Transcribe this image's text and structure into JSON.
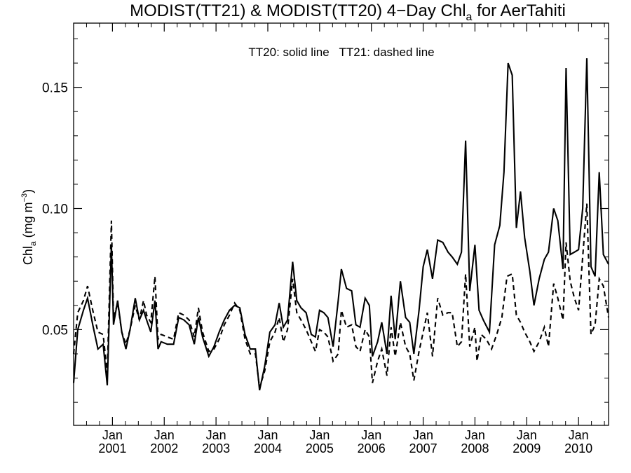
{
  "chart_data": {
    "type": "line",
    "title_main": "MODIST(TT21) & MODIST(TT20) 4−Day Chl",
    "title_sub": "a",
    "title_tail": " for AerTahiti",
    "ylabel_main": "Chl",
    "ylabel_sub": "a",
    "ylabel_unit": " (mg m",
    "ylabel_exp": "−3",
    "ylabel_close": ")",
    "annotation": "TT20: solid line   TT21: dashed line",
    "x_tick_month": "Jan",
    "x_ticks": [
      {
        "year": "2001",
        "x": 2001.0
      },
      {
        "year": "2002",
        "x": 2002.0
      },
      {
        "year": "2003",
        "x": 2003.0
      },
      {
        "year": "2004",
        "x": 2004.0
      },
      {
        "year": "2005",
        "x": 2005.0
      },
      {
        "year": "2006",
        "x": 2006.0
      },
      {
        "year": "2007",
        "x": 2007.0
      },
      {
        "year": "2008",
        "x": 2008.0
      },
      {
        "year": "2009",
        "x": 2009.0
      },
      {
        "year": "2010",
        "x": 2010.0
      }
    ],
    "y_ticks": [
      "0.05",
      "0.10",
      "0.15"
    ],
    "xlim": [
      2000.25,
      2010.58
    ],
    "ylim": [
      0.0105,
      0.1765
    ],
    "grid": false,
    "series": [
      {
        "style": "solid",
        "color": "#000000",
        "points": [
          [
            2000.25,
            0.028
          ],
          [
            2000.33,
            0.05
          ],
          [
            2000.44,
            0.058
          ],
          [
            2000.52,
            0.063
          ],
          [
            2000.62,
            0.052
          ],
          [
            2000.72,
            0.042
          ],
          [
            2000.82,
            0.044
          ],
          [
            2000.9,
            0.027
          ],
          [
            2000.98,
            0.085
          ],
          [
            2001.02,
            0.052
          ],
          [
            2001.1,
            0.062
          ],
          [
            2001.18,
            0.049
          ],
          [
            2001.26,
            0.042
          ],
          [
            2001.34,
            0.05
          ],
          [
            2001.44,
            0.063
          ],
          [
            2001.52,
            0.054
          ],
          [
            2001.6,
            0.058
          ],
          [
            2001.66,
            0.054
          ],
          [
            2001.74,
            0.049
          ],
          [
            2001.82,
            0.062
          ],
          [
            2001.88,
            0.042
          ],
          [
            2001.94,
            0.045
          ],
          [
            2002.06,
            0.044
          ],
          [
            2002.18,
            0.044
          ],
          [
            2002.28,
            0.055
          ],
          [
            2002.38,
            0.054
          ],
          [
            2002.48,
            0.052
          ],
          [
            2002.58,
            0.044
          ],
          [
            2002.66,
            0.055
          ],
          [
            2002.74,
            0.047
          ],
          [
            2002.86,
            0.039
          ],
          [
            2002.96,
            0.043
          ],
          [
            2003.06,
            0.049
          ],
          [
            2003.16,
            0.054
          ],
          [
            2003.26,
            0.058
          ],
          [
            2003.36,
            0.06
          ],
          [
            2003.46,
            0.059
          ],
          [
            2003.56,
            0.048
          ],
          [
            2003.66,
            0.042
          ],
          [
            2003.76,
            0.042
          ],
          [
            2003.84,
            0.025
          ],
          [
            2003.94,
            0.035
          ],
          [
            2004.04,
            0.049
          ],
          [
            2004.14,
            0.052
          ],
          [
            2004.22,
            0.061
          ],
          [
            2004.3,
            0.051
          ],
          [
            2004.38,
            0.054
          ],
          [
            2004.48,
            0.078
          ],
          [
            2004.56,
            0.062
          ],
          [
            2004.64,
            0.059
          ],
          [
            2004.74,
            0.057
          ],
          [
            2004.84,
            0.048
          ],
          [
            2004.92,
            0.047
          ],
          [
            2005.0,
            0.058
          ],
          [
            2005.08,
            0.057
          ],
          [
            2005.16,
            0.055
          ],
          [
            2005.26,
            0.043
          ],
          [
            2005.36,
            0.062
          ],
          [
            2005.42,
            0.075
          ],
          [
            2005.52,
            0.067
          ],
          [
            2005.62,
            0.066
          ],
          [
            2005.7,
            0.052
          ],
          [
            2005.78,
            0.051
          ],
          [
            2005.88,
            0.063
          ],
          [
            2005.96,
            0.06
          ],
          [
            2006.02,
            0.039
          ],
          [
            2006.12,
            0.045
          ],
          [
            2006.2,
            0.053
          ],
          [
            2006.3,
            0.04
          ],
          [
            2006.38,
            0.064
          ],
          [
            2006.46,
            0.046
          ],
          [
            2006.56,
            0.07
          ],
          [
            2006.66,
            0.055
          ],
          [
            2006.74,
            0.053
          ],
          [
            2006.82,
            0.04
          ],
          [
            2006.92,
            0.058
          ],
          [
            2007.0,
            0.076
          ],
          [
            2007.08,
            0.083
          ],
          [
            2007.18,
            0.071
          ],
          [
            2007.28,
            0.087
          ],
          [
            2007.38,
            0.086
          ],
          [
            2007.48,
            0.082
          ],
          [
            2007.56,
            0.08
          ],
          [
            2007.66,
            0.077
          ],
          [
            2007.74,
            0.082
          ],
          [
            2007.82,
            0.128
          ],
          [
            2007.9,
            0.066
          ],
          [
            2008.0,
            0.085
          ],
          [
            2008.08,
            0.058
          ],
          [
            2008.16,
            0.054
          ],
          [
            2008.28,
            0.049
          ],
          [
            2008.38,
            0.085
          ],
          [
            2008.48,
            0.093
          ],
          [
            2008.56,
            0.115
          ],
          [
            2008.64,
            0.16
          ],
          [
            2008.72,
            0.155
          ],
          [
            2008.8,
            0.092
          ],
          [
            2008.88,
            0.107
          ],
          [
            2008.96,
            0.088
          ],
          [
            2009.06,
            0.074
          ],
          [
            2009.14,
            0.06
          ],
          [
            2009.24,
            0.071
          ],
          [
            2009.34,
            0.079
          ],
          [
            2009.42,
            0.082
          ],
          [
            2009.52,
            0.1
          ],
          [
            2009.6,
            0.095
          ],
          [
            2009.7,
            0.075
          ],
          [
            2009.76,
            0.158
          ],
          [
            2009.84,
            0.081
          ],
          [
            2009.92,
            0.082
          ],
          [
            2010.0,
            0.083
          ],
          [
            2010.08,
            0.1
          ],
          [
            2010.16,
            0.162
          ],
          [
            2010.24,
            0.076
          ],
          [
            2010.32,
            0.072
          ],
          [
            2010.4,
            0.115
          ],
          [
            2010.48,
            0.081
          ],
          [
            2010.58,
            0.077
          ]
        ]
      },
      {
        "style": "dashed",
        "color": "#000000",
        "points": [
          [
            2000.25,
            0.04
          ],
          [
            2000.33,
            0.057
          ],
          [
            2000.44,
            0.062
          ],
          [
            2000.52,
            0.068
          ],
          [
            2000.62,
            0.058
          ],
          [
            2000.72,
            0.049
          ],
          [
            2000.82,
            0.048
          ],
          [
            2000.9,
            0.032
          ],
          [
            2000.98,
            0.095
          ],
          [
            2001.02,
            0.055
          ],
          [
            2001.1,
            0.061
          ],
          [
            2001.18,
            0.049
          ],
          [
            2001.26,
            0.044
          ],
          [
            2001.34,
            0.05
          ],
          [
            2001.44,
            0.06
          ],
          [
            2001.52,
            0.054
          ],
          [
            2001.6,
            0.062
          ],
          [
            2001.66,
            0.056
          ],
          [
            2001.74,
            0.053
          ],
          [
            2001.82,
            0.072
          ],
          [
            2001.88,
            0.046
          ],
          [
            2001.94,
            0.048
          ],
          [
            2002.06,
            0.047
          ],
          [
            2002.18,
            0.046
          ],
          [
            2002.28,
            0.057
          ],
          [
            2002.38,
            0.056
          ],
          [
            2002.48,
            0.054
          ],
          [
            2002.58,
            0.047
          ],
          [
            2002.66,
            0.059
          ],
          [
            2002.74,
            0.049
          ],
          [
            2002.86,
            0.041
          ],
          [
            2002.96,
            0.042
          ],
          [
            2003.06,
            0.046
          ],
          [
            2003.16,
            0.052
          ],
          [
            2003.26,
            0.056
          ],
          [
            2003.36,
            0.061
          ],
          [
            2003.46,
            0.058
          ],
          [
            2003.56,
            0.046
          ],
          [
            2003.66,
            0.04
          ],
          [
            2003.76,
            0.04
          ],
          [
            2003.84,
            0.026
          ],
          [
            2003.94,
            0.033
          ],
          [
            2004.04,
            0.045
          ],
          [
            2004.14,
            0.049
          ],
          [
            2004.22,
            0.055
          ],
          [
            2004.3,
            0.045
          ],
          [
            2004.38,
            0.05
          ],
          [
            2004.48,
            0.071
          ],
          [
            2004.56,
            0.057
          ],
          [
            2004.64,
            0.054
          ],
          [
            2004.74,
            0.05
          ],
          [
            2004.84,
            0.045
          ],
          [
            2004.92,
            0.041
          ],
          [
            2005.0,
            0.05
          ],
          [
            2005.08,
            0.049
          ],
          [
            2005.16,
            0.047
          ],
          [
            2005.26,
            0.037
          ],
          [
            2005.36,
            0.04
          ],
          [
            2005.42,
            0.058
          ],
          [
            2005.52,
            0.051
          ],
          [
            2005.62,
            0.052
          ],
          [
            2005.7,
            0.043
          ],
          [
            2005.78,
            0.041
          ],
          [
            2005.88,
            0.05
          ],
          [
            2005.96,
            0.047
          ],
          [
            2006.02,
            0.028
          ],
          [
            2006.12,
            0.037
          ],
          [
            2006.2,
            0.042
          ],
          [
            2006.3,
            0.031
          ],
          [
            2006.38,
            0.051
          ],
          [
            2006.46,
            0.039
          ],
          [
            2006.56,
            0.053
          ],
          [
            2006.66,
            0.043
          ],
          [
            2006.74,
            0.04
          ],
          [
            2006.82,
            0.029
          ],
          [
            2006.92,
            0.041
          ],
          [
            2007.0,
            0.049
          ],
          [
            2007.08,
            0.057
          ],
          [
            2007.18,
            0.039
          ],
          [
            2007.28,
            0.063
          ],
          [
            2007.38,
            0.056
          ],
          [
            2007.48,
            0.057
          ],
          [
            2007.56,
            0.057
          ],
          [
            2007.66,
            0.043
          ],
          [
            2007.74,
            0.045
          ],
          [
            2007.82,
            0.073
          ],
          [
            2007.9,
            0.043
          ],
          [
            2008.0,
            0.051
          ],
          [
            2008.04,
            0.037
          ],
          [
            2008.12,
            0.048
          ],
          [
            2008.22,
            0.046
          ],
          [
            2008.32,
            0.042
          ],
          [
            2008.42,
            0.048
          ],
          [
            2008.52,
            0.055
          ],
          [
            2008.62,
            0.072
          ],
          [
            2008.72,
            0.073
          ],
          [
            2008.8,
            0.056
          ],
          [
            2008.88,
            0.053
          ],
          [
            2008.96,
            0.049
          ],
          [
            2009.06,
            0.045
          ],
          [
            2009.14,
            0.041
          ],
          [
            2009.24,
            0.045
          ],
          [
            2009.34,
            0.051
          ],
          [
            2009.42,
            0.043
          ],
          [
            2009.52,
            0.069
          ],
          [
            2009.6,
            0.063
          ],
          [
            2009.7,
            0.054
          ],
          [
            2009.76,
            0.086
          ],
          [
            2009.84,
            0.07
          ],
          [
            2009.92,
            0.063
          ],
          [
            2010.0,
            0.058
          ],
          [
            2010.08,
            0.08
          ],
          [
            2010.16,
            0.102
          ],
          [
            2010.24,
            0.048
          ],
          [
            2010.32,
            0.052
          ],
          [
            2010.4,
            0.071
          ],
          [
            2010.48,
            0.068
          ],
          [
            2010.58,
            0.055
          ]
        ]
      }
    ]
  }
}
